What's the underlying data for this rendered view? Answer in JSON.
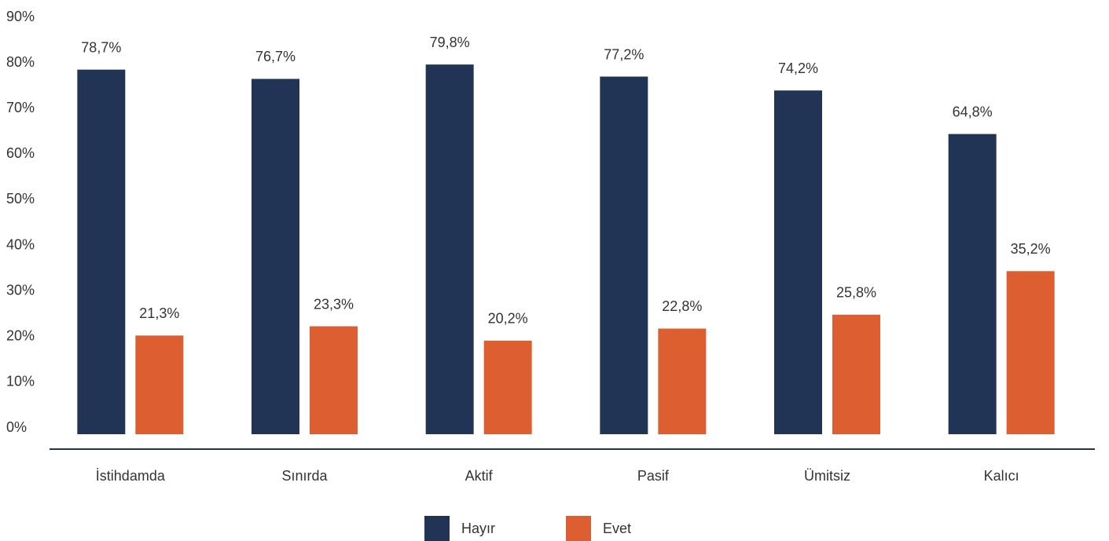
{
  "chart_data": {
    "type": "bar",
    "categories": [
      "İstihdamda",
      "Sınırda",
      "Aktif",
      "Pasif",
      "Ümitsiz",
      "Kalıcı"
    ],
    "series": [
      {
        "name": "Hayır",
        "color": "#213455",
        "values": [
          78.7,
          76.7,
          79.8,
          77.2,
          74.2,
          64.8
        ],
        "value_labels": [
          "78,7%",
          "76,7%",
          "79,8%",
          "77,2%",
          "74,2%",
          "64,8%"
        ]
      },
      {
        "name": "Evet",
        "color": "#dd5e30",
        "values": [
          21.3,
          23.3,
          20.2,
          22.8,
          25.8,
          35.2
        ],
        "value_labels": [
          "21,3%",
          "23,3%",
          "20,2%",
          "22,8%",
          "25,8%",
          "35,2%"
        ]
      }
    ],
    "ylim": [
      0,
      90
    ],
    "yticks": [
      {
        "value": 0,
        "label": "0%"
      },
      {
        "value": 10,
        "label": "10%"
      },
      {
        "value": 20,
        "label": "20%"
      },
      {
        "value": 30,
        "label": "30%"
      },
      {
        "value": 40,
        "label": "40%"
      },
      {
        "value": 50,
        "label": "50%"
      },
      {
        "value": 60,
        "label": "60%"
      },
      {
        "value": 70,
        "label": "70%"
      },
      {
        "value": 80,
        "label": "80%"
      },
      {
        "value": 90,
        "label": "90%"
      }
    ],
    "grid": false
  }
}
